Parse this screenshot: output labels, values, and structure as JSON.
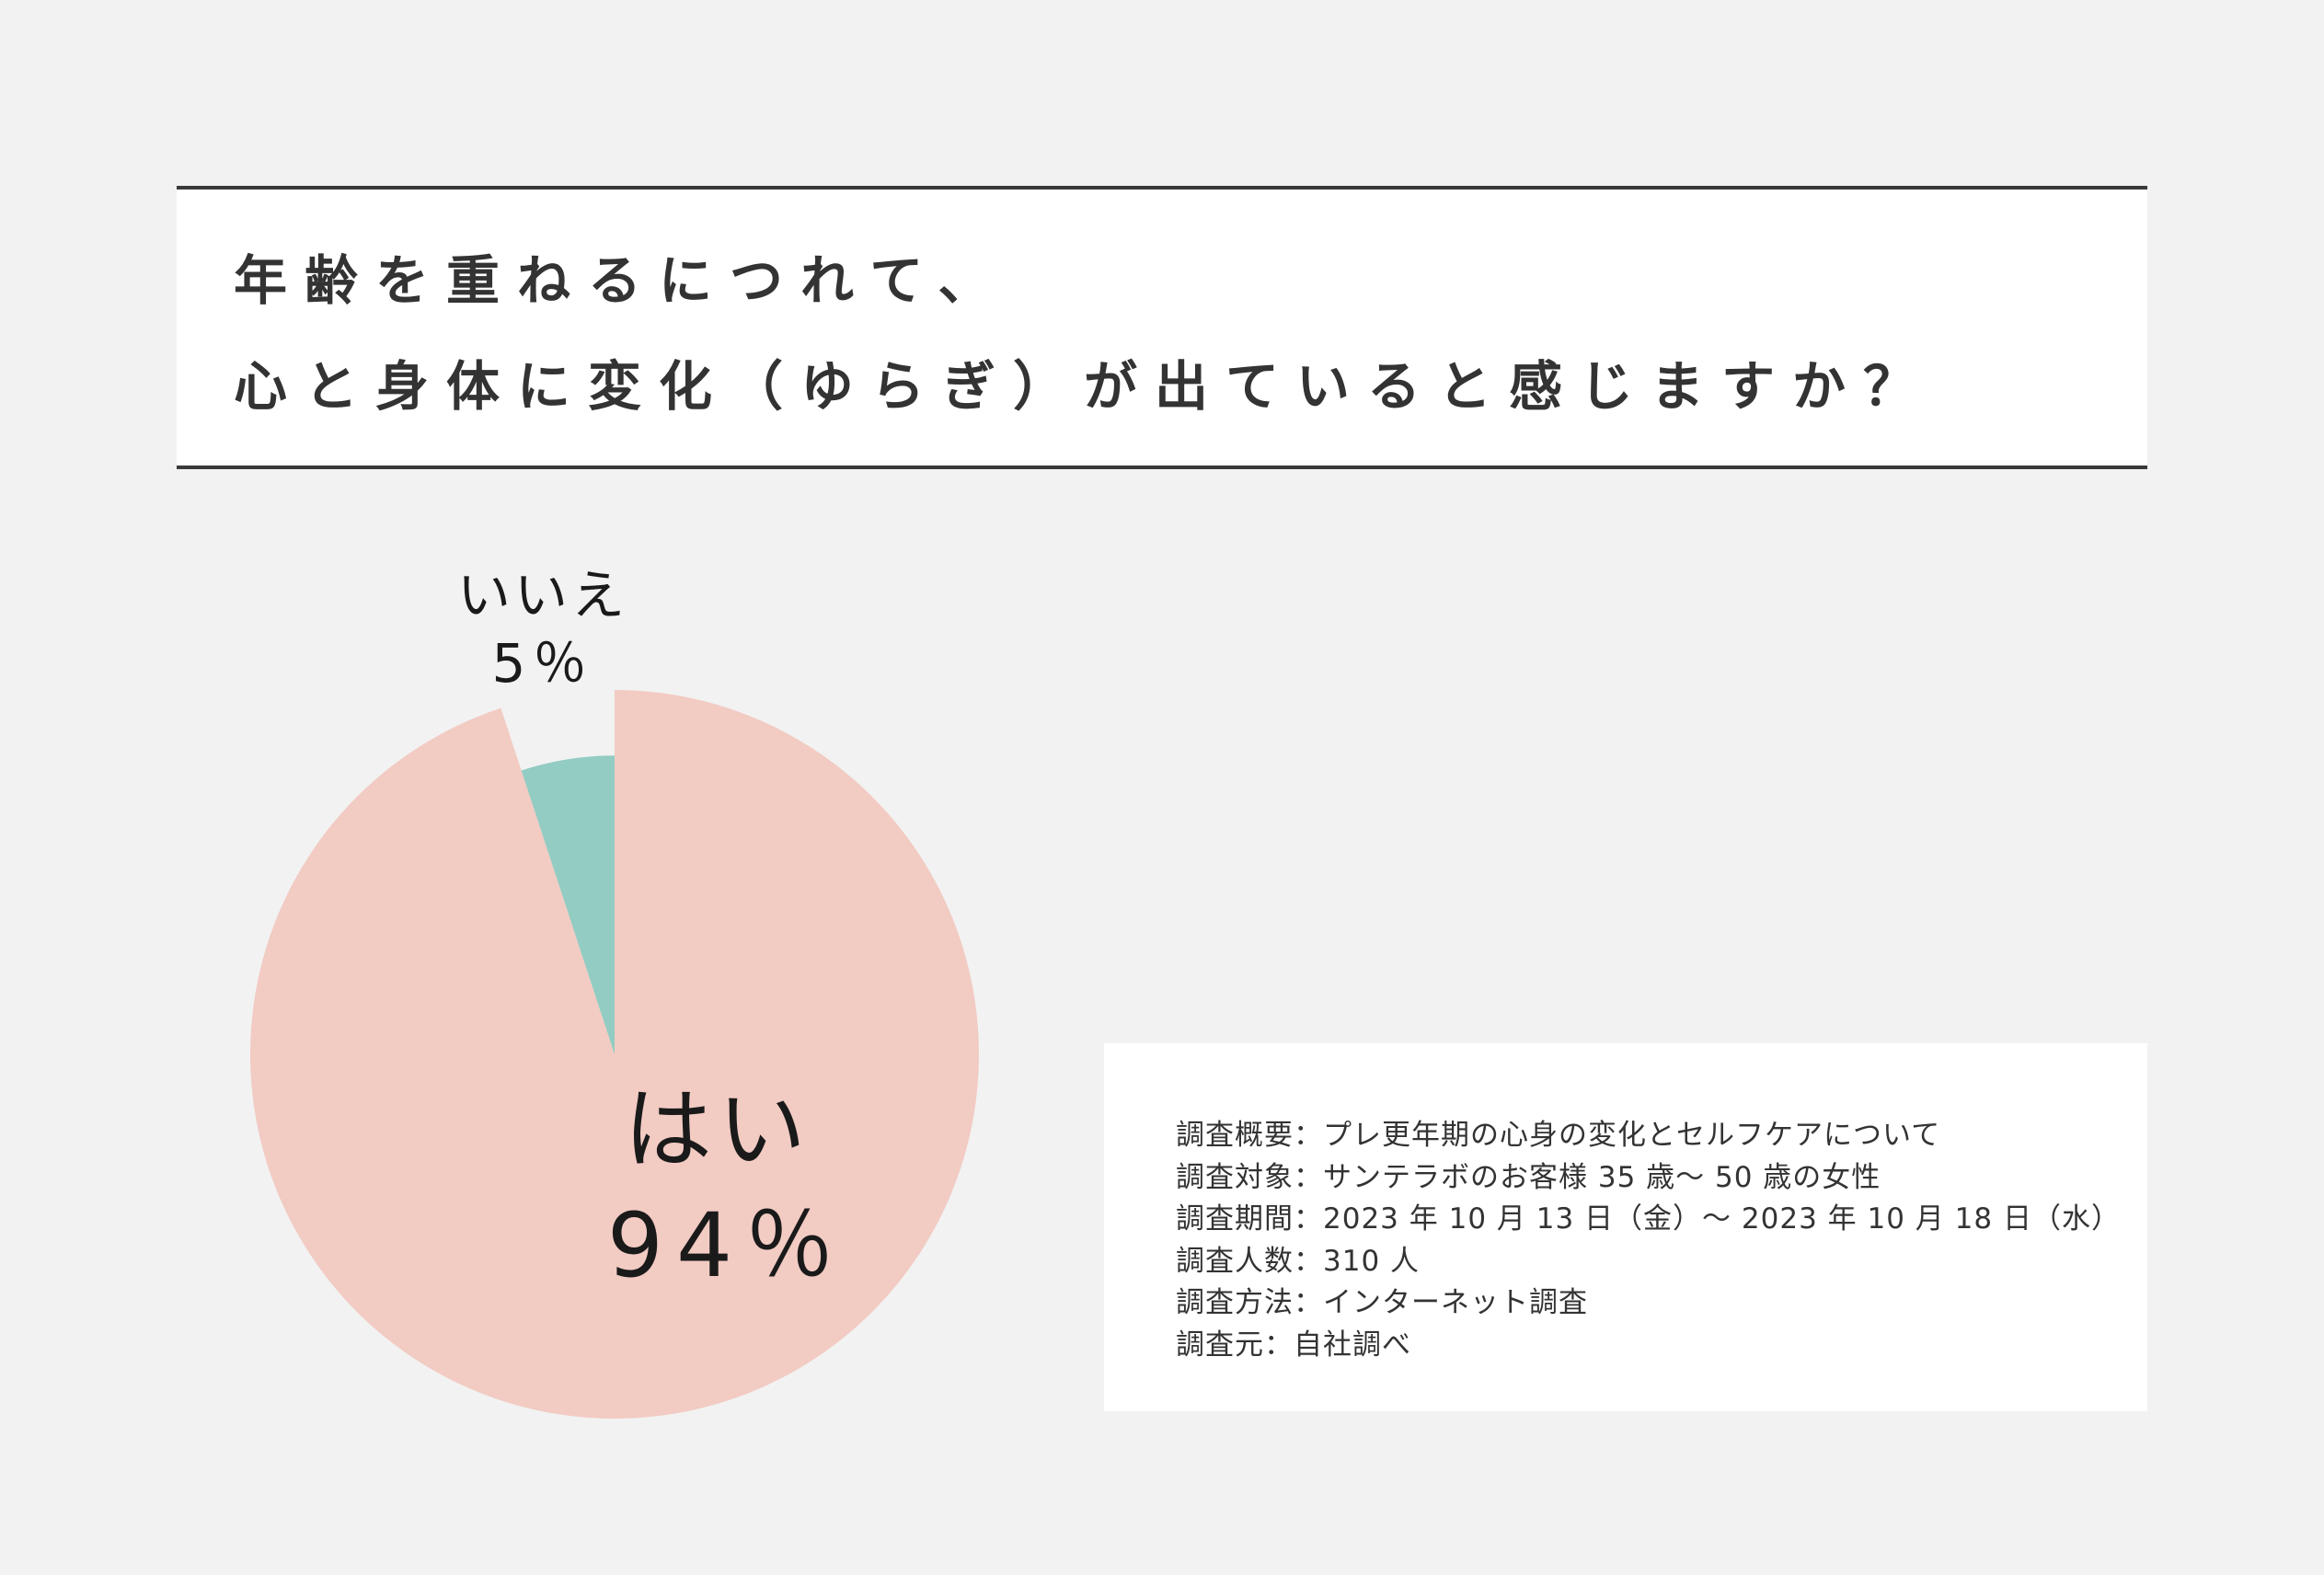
{
  "title": {
    "line1": "年齢を重ねるにつれて、",
    "line2": "心と身体に変化（ゆらぎ）が出ていると感じますか？"
  },
  "chart_data": {
    "type": "pie",
    "start_angle_deg": 0,
    "direction": "clockwise",
    "slices": [
      {
        "label": "はい",
        "value": 94,
        "display": "94％",
        "color": "#f2cbc3",
        "exploded": false
      },
      {
        "label": "いいえ",
        "value": 5,
        "display": "5％",
        "color": "#92ccc2",
        "exploded": true,
        "inner_radius_ratio": 0.82
      }
    ],
    "background_color": "#f2f2f2"
  },
  "survey_info": {
    "lines": [
      "調査概要：プレ更年期の心身の変化とセルフケアについて",
      "調査対象：サンテラボのお客様 35 歳〜 50 歳の女性",
      "調査期間：2023 年 10 月 13 日（金）〜 2023 年 10 月 18 日（水）",
      "調査人数：310 人",
      "調査方法：インターネット調査",
      "調査元：自社調べ"
    ]
  }
}
